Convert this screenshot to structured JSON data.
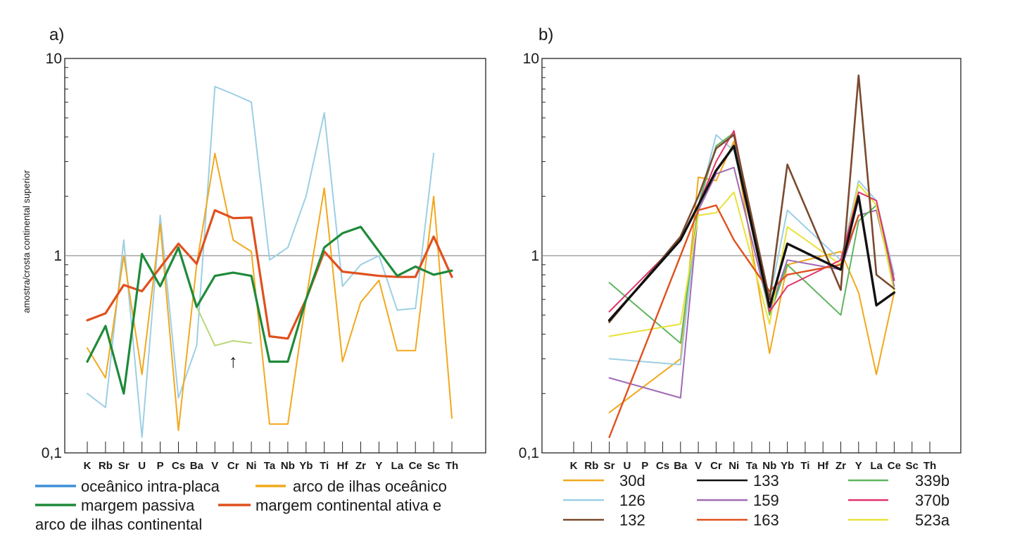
{
  "chart_data": [
    {
      "type": "line",
      "panel_label": "a)",
      "ylabel": "amostra/crosta continental superior",
      "yscale": "log",
      "ylim": [
        0.1,
        10
      ],
      "ytick_labels": [
        "0,1",
        "1",
        "10"
      ],
      "reference_line": 1,
      "categories": [
        "K",
        "Rb",
        "Sr",
        "U",
        "P",
        "Cs",
        "Ba",
        "V",
        "Cr",
        "Ni",
        "Ta",
        "Nb",
        "Yb",
        "Ti",
        "Hf",
        "Zr",
        "Y",
        "La",
        "Ce",
        "Sc",
        "Th"
      ],
      "annotation": "↑",
      "annotation_at": {
        "category": "Cr",
        "value": 0.3
      },
      "legend": [
        {
          "label": "oceânico intra-placa",
          "color": "#3d8fd8"
        },
        {
          "label": "arco de ilhas oceânico",
          "color": "#f2a81d"
        },
        {
          "label": "margem passiva",
          "color": "#1e8a3a"
        },
        {
          "label": "margem continental ativa e",
          "label2": "arco de ilhas continental",
          "color": "#e0501e"
        }
      ],
      "series": [
        {
          "name": "oceânico intra-placa",
          "color": "#9ccfe4",
          "width": 2,
          "values": [
            0.2,
            0.17,
            1.2,
            0.12,
            1.6,
            0.19,
            0.35,
            7.2,
            6.6,
            6,
            0.95,
            1.1,
            2,
            5.3,
            0.7,
            0.9,
            1,
            0.53,
            0.54,
            3.3,
            null
          ]
        },
        {
          "name": "arco de ilhas oceânico",
          "color": "#f2a81d",
          "width": 2,
          "values": [
            0.34,
            0.24,
            1,
            0.25,
            1.45,
            0.13,
            0.9,
            3.3,
            1.2,
            1.05,
            0.14,
            0.14,
            0.6,
            2.2,
            0.29,
            0.58,
            0.75,
            0.33,
            0.33,
            2,
            0.15
          ]
        },
        {
          "name": "green-light",
          "color": "#b9d87a",
          "width": 2,
          "values": [
            null,
            null,
            null,
            null,
            null,
            null,
            0.55,
            0.35,
            0.37,
            0.36,
            null,
            null,
            null,
            null,
            null,
            null,
            null,
            null,
            null,
            null,
            null
          ]
        },
        {
          "name": "margem continental ativa e arco de ilhas continental",
          "color": "#e0501e",
          "width": 3.2,
          "values": [
            0.47,
            0.51,
            0.71,
            0.66,
            0.87,
            1.15,
            0.91,
            1.7,
            1.55,
            1.56,
            0.39,
            0.38,
            0.6,
            1.05,
            0.83,
            0.81,
            0.79,
            0.78,
            0.78,
            1.25,
            0.78
          ]
        },
        {
          "name": "margem passiva",
          "color": "#1e8a3a",
          "width": 3.2,
          "values": [
            0.29,
            0.44,
            0.2,
            1.02,
            0.7,
            1.1,
            0.55,
            0.79,
            0.82,
            0.79,
            0.29,
            0.29,
            0.6,
            1.1,
            1.3,
            1.4,
            1.05,
            0.79,
            0.88,
            0.8,
            0.84
          ]
        }
      ]
    },
    {
      "type": "line",
      "panel_label": "b)",
      "yscale": "log",
      "ylim": [
        0.1,
        10
      ],
      "ytick_labels": [
        "0,1",
        "1",
        "10"
      ],
      "reference_line": 1,
      "categories": [
        "K",
        "Rb",
        "Sr",
        "U",
        "P",
        "Cs",
        "Ba",
        "V",
        "Cr",
        "Ni",
        "Ta",
        "Nb",
        "Yb",
        "Ti",
        "Hf",
        "Zr",
        "Y",
        "La",
        "Ce",
        "Sc",
        "Th"
      ],
      "legend": [
        {
          "label": "30d",
          "color": "#f2a81d"
        },
        {
          "label": "133",
          "color": "#111111"
        },
        {
          "label": "339b",
          "color": "#5fb55f"
        },
        {
          "label": "126",
          "color": "#9ccfe4"
        },
        {
          "label": "159",
          "color": "#a06ab4"
        },
        {
          "label": "370b",
          "color": "#e0336a"
        },
        {
          "label": "132",
          "color": "#7a4a2e"
        },
        {
          "label": "163",
          "color": "#e0501e"
        },
        {
          "label": "523a",
          "color": "#e8e23a"
        }
      ],
      "series": [
        {
          "name": "30d",
          "color": "#f2a81d",
          "width": 2,
          "x": [
            "Sr",
            "Ba",
            "V",
            "Cr",
            "Ni",
            "Nb",
            "Yb",
            "Zr",
            "Y",
            "La",
            "Ce"
          ],
          "values": [
            0.16,
            0.3,
            2.5,
            2.4,
            3.8,
            0.32,
            0.9,
            1.05,
            0.65,
            0.25,
            0.65
          ]
        },
        {
          "name": "126",
          "color": "#9ccfe4",
          "width": 2,
          "x": [
            "Sr",
            "Ba",
            "V",
            "Cr",
            "Ni",
            "Nb",
            "Yb",
            "Zr",
            "Y",
            "La",
            "Ce"
          ],
          "values": [
            0.3,
            0.28,
            1.8,
            4.1,
            3.4,
            0.6,
            1.7,
            0.95,
            2.4,
            1.9,
            0.8
          ]
        },
        {
          "name": "159",
          "color": "#a06ab4",
          "width": 2,
          "x": [
            "Sr",
            "Ba",
            "V",
            "Cr",
            "Ni",
            "Nb",
            "Yb",
            "Zr",
            "Y",
            "La",
            "Ce"
          ],
          "values": [
            0.24,
            0.19,
            1.7,
            2.6,
            2.8,
            0.52,
            0.95,
            0.85,
            1.6,
            1.7,
            0.7
          ]
        },
        {
          "name": "339b",
          "color": "#5fb55f",
          "width": 2,
          "x": [
            "Sr",
            "Ba",
            "V",
            "Cr",
            "Ni",
            "Nb",
            "Yb",
            "Zr",
            "Y",
            "La",
            "Ce"
          ],
          "values": [
            0.73,
            0.36,
            1.8,
            3.6,
            4.2,
            0.5,
            0.9,
            0.5,
            1.5,
            1.8,
            0.75
          ]
        },
        {
          "name": "523a",
          "color": "#e8e23a",
          "width": 2,
          "x": [
            "Sr",
            "Ba",
            "V",
            "Cr",
            "Ni",
            "Nb",
            "Yb",
            "Zr",
            "Y",
            "La",
            "Ce"
          ],
          "values": [
            0.39,
            0.45,
            1.6,
            1.65,
            2.1,
            0.45,
            1.4,
            0.9,
            2.3,
            1.8,
            0.65
          ]
        },
        {
          "name": "370b",
          "color": "#e0336a",
          "width": 2,
          "x": [
            "Sr",
            "Ba",
            "V",
            "Cr",
            "Ni",
            "Nb",
            "Yb",
            "Zr",
            "Y",
            "La",
            "Ce"
          ],
          "values": [
            0.52,
            1.2,
            1.8,
            3.0,
            4.3,
            0.52,
            0.7,
            0.95,
            2.1,
            1.9,
            0.75
          ]
        },
        {
          "name": "163",
          "color": "#e0501e",
          "width": 2.4,
          "x": [
            "Sr",
            "Ba",
            "V",
            "Cr",
            "Ni",
            "Nb",
            "Yb",
            "Zr",
            "Y"
          ],
          "values": [
            0.12,
            1.0,
            1.7,
            1.8,
            1.2,
            0.66,
            0.8,
            0.9,
            1.6
          ]
        },
        {
          "name": "132",
          "color": "#7a4a2e",
          "width": 2.6,
          "x": [
            "Sr",
            "Ba",
            "V",
            "Cr",
            "Ni",
            "Nb",
            "Yb",
            "Zr",
            "Y",
            "La",
            "Ce"
          ],
          "values": [
            0.46,
            1.25,
            2.0,
            3.5,
            4.1,
            0.6,
            2.9,
            0.67,
            8.2,
            0.8,
            0.68
          ]
        },
        {
          "name": "133",
          "color": "#111111",
          "width": 3.4,
          "x": [
            "Sr",
            "Ba",
            "V",
            "Cr",
            "Ni",
            "Nb",
            "Yb",
            "Zr",
            "Y",
            "La",
            "Ce"
          ],
          "values": [
            0.47,
            1.2,
            1.8,
            2.7,
            3.6,
            0.55,
            1.15,
            0.85,
            2.0,
            0.56,
            0.65
          ]
        }
      ]
    }
  ]
}
